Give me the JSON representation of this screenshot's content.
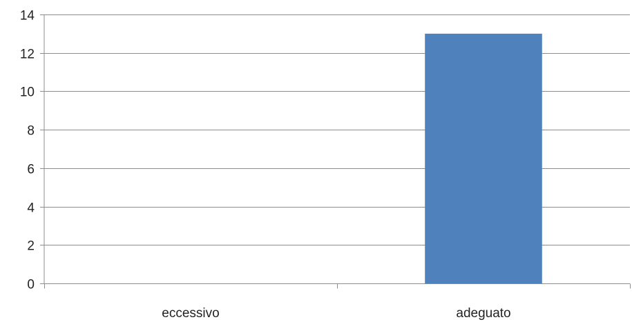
{
  "chart_data": {
    "type": "bar",
    "categories": [
      "eccessivo",
      "adeguato"
    ],
    "values": [
      0,
      13
    ],
    "ylim": [
      0,
      14
    ],
    "yticks": [
      0,
      2,
      4,
      6,
      8,
      10,
      12,
      14
    ],
    "grid": true,
    "legend": "none",
    "title": "",
    "xlabel": "",
    "ylabel": ""
  },
  "colors": {
    "bar": "#4f81bd",
    "grid": "#8c8c8c",
    "axis": "#8c8c8c"
  }
}
